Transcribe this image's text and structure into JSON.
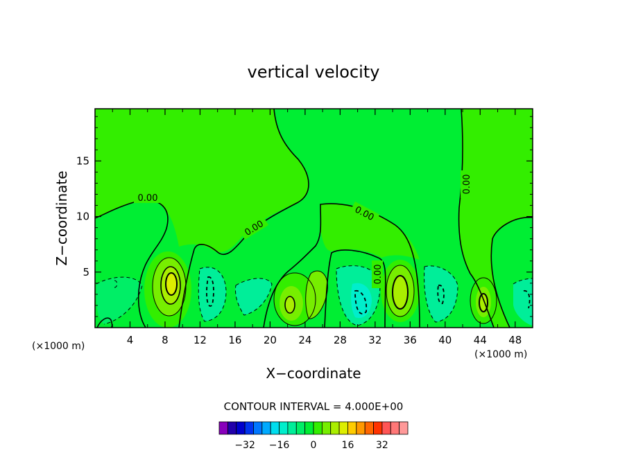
{
  "chart_data": {
    "type": "contour",
    "title": "vertical velocity",
    "xlabel": "X−coordinate",
    "ylabel": "Z−coordinate",
    "x_unit_left": "(×1000 m)",
    "x_unit_right": "(×1000 m)",
    "xlim": [
      0,
      50
    ],
    "ylim": [
      0,
      19.7
    ],
    "x_ticks": [
      "4",
      "8",
      "12",
      "16",
      "20",
      "24",
      "28",
      "32",
      "36",
      "40",
      "44",
      "48"
    ],
    "x_tick_values": [
      4,
      8,
      12,
      16,
      20,
      24,
      28,
      32,
      36,
      40,
      44,
      48
    ],
    "y_ticks": [
      "5",
      "10",
      "15"
    ],
    "y_tick_values": [
      5,
      10,
      15
    ],
    "contour_interval_text": "CONTOUR INTERVAL = 4.000E+00",
    "contour_interval": 4.0,
    "zero_contour_labels": [
      "0.00",
      "0.00",
      "0.00",
      "0.00",
      "0.00"
    ],
    "colorbar": {
      "colors": [
        "#8800bb",
        "#2200aa",
        "#0000cc",
        "#0033ee",
        "#0077ff",
        "#00aaff",
        "#00ddee",
        "#00eecc",
        "#00ee99",
        "#00ee66",
        "#00ee33",
        "#33ee00",
        "#77ee00",
        "#aaee00",
        "#ddee00",
        "#ffcc00",
        "#ff9900",
        "#ff6600",
        "#ff3300",
        "#ff5555",
        "#ff7777",
        "#ff9999"
      ],
      "tick_labels": [
        "−32",
        "−16",
        "0",
        "16",
        "32"
      ],
      "tick_values": [
        -32,
        -16,
        0,
        16,
        32
      ]
    }
  }
}
